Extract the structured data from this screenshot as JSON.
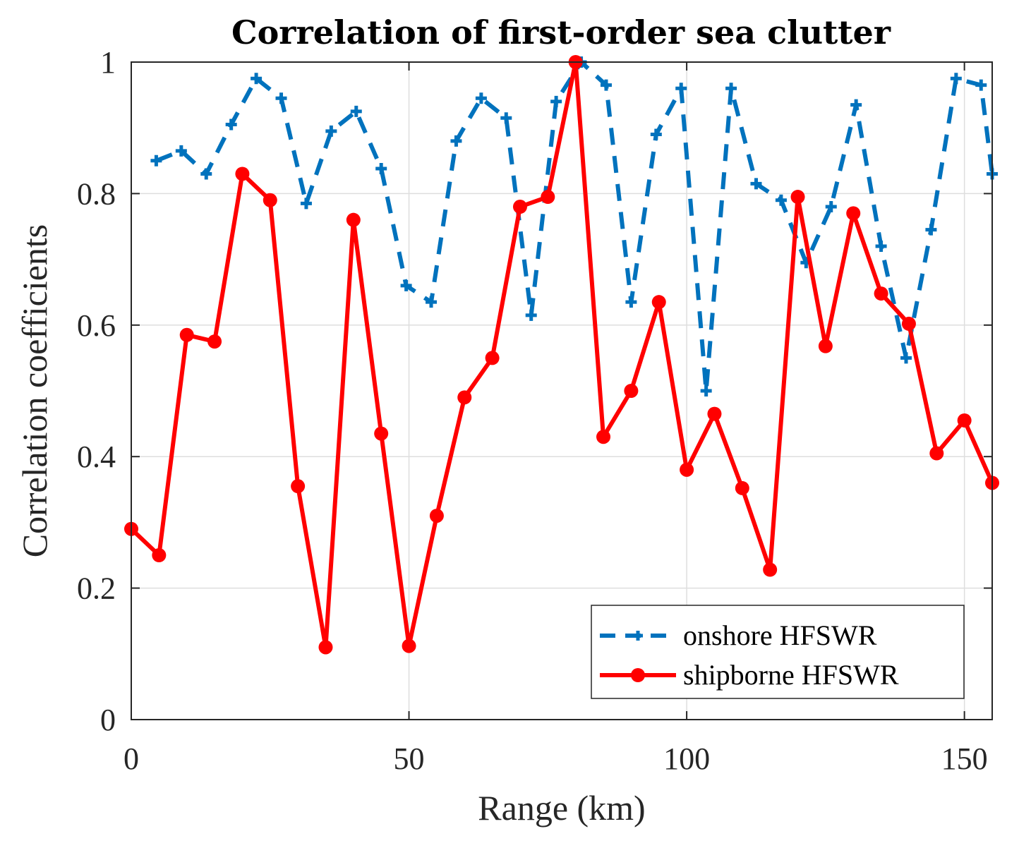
{
  "chart_data": {
    "type": "line",
    "title": "Correlation of first-order sea clutter",
    "xlabel": "Range (km)",
    "ylabel": "Correlation coefficients",
    "xlim": [
      0,
      155
    ],
    "ylim": [
      0,
      1
    ],
    "xticks": [
      0,
      50,
      100,
      150
    ],
    "xtick_labels": [
      "0",
      "50",
      "100",
      "150"
    ],
    "yticks": [
      0,
      0.2,
      0.4,
      0.6,
      0.8,
      1
    ],
    "ytick_labels": [
      "0",
      "0.2",
      "0.4",
      "0.6",
      "0.8",
      "1"
    ],
    "grid": true,
    "legend_position": "bottom-right",
    "series": [
      {
        "name": "onshore HFSWR",
        "color": "#0072BD",
        "line_style": "dashed",
        "marker": "plus",
        "x": [
          4.5,
          9,
          13.5,
          18,
          22.5,
          27,
          31.5,
          36,
          40.5,
          45,
          49.5,
          54,
          58.5,
          63,
          67.5,
          72,
          76.5,
          81,
          85.5,
          90,
          94.5,
          99,
          103.5,
          108,
          112.5,
          117,
          121.5,
          126,
          130.5,
          135,
          139.5,
          144,
          148.5,
          153,
          155
        ],
        "values": [
          0.85,
          0.865,
          0.83,
          0.905,
          0.975,
          0.945,
          0.785,
          0.895,
          0.925,
          0.838,
          0.66,
          0.635,
          0.88,
          0.945,
          0.915,
          0.615,
          0.94,
          1.0,
          0.965,
          0.635,
          0.89,
          0.96,
          0.5,
          0.96,
          0.815,
          0.79,
          0.695,
          0.78,
          0.935,
          0.72,
          0.55,
          0.745,
          0.975,
          0.965,
          0.83
        ]
      },
      {
        "name": "shipborne HFSWR",
        "color": "#FF0000",
        "line_style": "solid",
        "marker": "circle",
        "x": [
          0,
          5,
          10,
          15,
          20,
          25,
          30,
          35,
          40,
          45,
          50,
          55,
          60,
          65,
          70,
          75,
          80,
          85,
          90,
          95,
          100,
          105,
          110,
          115,
          120,
          125,
          130,
          135,
          140,
          145,
          150,
          155
        ],
        "values": [
          0.29,
          0.25,
          0.585,
          0.575,
          0.83,
          0.79,
          0.355,
          0.11,
          0.76,
          0.435,
          0.112,
          0.31,
          0.49,
          0.55,
          0.78,
          0.795,
          1.0,
          0.43,
          0.5,
          0.635,
          0.38,
          0.465,
          0.352,
          0.228,
          0.795,
          0.568,
          0.77,
          0.648,
          0.602,
          0.405,
          0.455,
          0.36
        ]
      }
    ]
  }
}
